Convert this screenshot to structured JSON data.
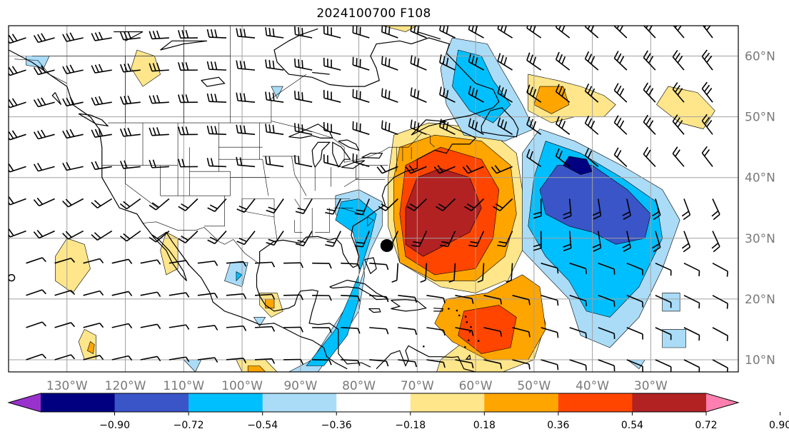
{
  "title": "2024100700 F108",
  "map": {
    "lon_range": [
      -140,
      -15
    ],
    "lat_range": [
      8,
      65
    ],
    "lon_labels": [
      "130°W",
      "120°W",
      "110°W",
      "100°W",
      "90°W",
      "80°W",
      "70°W",
      "60°W",
      "50°W",
      "40°W",
      "30°W"
    ],
    "lon_values": [
      -130,
      -120,
      -110,
      -100,
      -90,
      -80,
      -70,
      -60,
      -50,
      -40,
      -30
    ],
    "lat_labels": [
      "10°N",
      "20°N",
      "30°N",
      "40°N",
      "50°N",
      "60°N"
    ],
    "lat_values": [
      10,
      20,
      30,
      40,
      50,
      60
    ],
    "grid_color": "#a0a0a0",
    "marker": {
      "lon": -75.2,
      "lat": 28.8,
      "name": "storm-center"
    }
  },
  "colorbar": {
    "ticks": [
      "−0.90",
      "−0.72",
      "−0.54",
      "−0.36",
      "−0.18",
      "0.18",
      "0.36",
      "0.54",
      "0.72",
      "0.90"
    ],
    "colors": [
      "#9932cc",
      "#000080",
      "#3a55c8",
      "#00bfff",
      "#aadcf8",
      "#ffffff",
      "#ffe68a",
      "#ffa500",
      "#ff4500",
      "#b22222",
      "#ff80b0"
    ]
  },
  "fields": [
    {
      "name": "gulf-stream-negative",
      "level": "#aadcf8",
      "polys": [
        [
          [
            -84,
            37
          ],
          [
            -80,
            38
          ],
          [
            -76,
            36
          ],
          [
            -76,
            32
          ],
          [
            -78,
            28
          ],
          [
            -80,
            22
          ],
          [
            -84,
            16
          ],
          [
            -88,
            10
          ],
          [
            -92,
            8
          ],
          [
            -87,
            8
          ],
          [
            -84,
            12
          ],
          [
            -80,
            18
          ],
          [
            -79,
            24
          ],
          [
            -80,
            30
          ],
          [
            -84,
            34
          ]
        ]
      ]
    },
    {
      "name": "gulf-stream-core",
      "level": "#00bfff",
      "polys": [
        [
          [
            -83,
            36
          ],
          [
            -80,
            36.5
          ],
          [
            -77,
            34
          ],
          [
            -78,
            30
          ],
          [
            -80,
            24
          ],
          [
            -84,
            15
          ],
          [
            -89,
            9
          ],
          [
            -86,
            9
          ],
          [
            -82,
            14
          ],
          [
            -80,
            20
          ],
          [
            -80,
            27
          ],
          [
            -81,
            31
          ],
          [
            -84,
            33
          ]
        ]
      ]
    },
    {
      "name": "atlantic-positive-outer",
      "level": "#ffe68a",
      "polys": [
        [
          [
            -74,
            47
          ],
          [
            -68,
            49
          ],
          [
            -58,
            48
          ],
          [
            -53,
            44
          ],
          [
            -52,
            38
          ],
          [
            -51,
            30
          ],
          [
            -55,
            22
          ],
          [
            -58,
            18
          ],
          [
            -62,
            13
          ],
          [
            -66,
            10
          ],
          [
            -67,
            7
          ],
          [
            -58,
            7
          ],
          [
            -50,
            10
          ],
          [
            -48,
            16
          ],
          [
            -50,
            22
          ],
          [
            -55,
            23
          ],
          [
            -60,
            21
          ],
          [
            -66,
            22
          ],
          [
            -73,
            26
          ],
          [
            -75,
            32
          ],
          [
            -75,
            40
          ]
        ]
      ]
    },
    {
      "name": "atlantic-positive-mid",
      "level": "#ffa500",
      "polys": [
        [
          [
            -73,
            45
          ],
          [
            -67,
            47
          ],
          [
            -59,
            46
          ],
          [
            -54,
            42
          ],
          [
            -53,
            34
          ],
          [
            -55,
            27
          ],
          [
            -60,
            23
          ],
          [
            -67,
            23
          ],
          [
            -73,
            26
          ],
          [
            -74,
            33
          ],
          [
            -74,
            40
          ]
        ]
      ]
    },
    {
      "name": "atlantic-positive-strong",
      "level": "#ff4500",
      "polys": [
        [
          [
            -72,
            42
          ],
          [
            -66,
            45
          ],
          [
            -59,
            43
          ],
          [
            -56,
            38
          ],
          [
            -57,
            30
          ],
          [
            -60,
            25
          ],
          [
            -67,
            24
          ],
          [
            -72,
            27
          ],
          [
            -73,
            34
          ]
        ]
      ]
    },
    {
      "name": "atlantic-positive-core",
      "level": "#b22222",
      "polys": [
        [
          [
            -70,
            40
          ],
          [
            -66,
            41.5
          ],
          [
            -61,
            40
          ],
          [
            -59,
            35
          ],
          [
            -61,
            31
          ],
          [
            -65,
            29
          ],
          [
            -69,
            27
          ],
          [
            -72,
            29
          ],
          [
            -72,
            35
          ]
        ]
      ]
    },
    {
      "name": "tropical-positive",
      "level": "#ffa500",
      "polys": [
        [
          [
            -65,
            20
          ],
          [
            -58,
            21
          ],
          [
            -52,
            24
          ],
          [
            -49,
            22
          ],
          [
            -48,
            15
          ],
          [
            -51,
            10
          ],
          [
            -58,
            10
          ],
          [
            -64,
            13
          ],
          [
            -67,
            16
          ]
        ]
      ]
    },
    {
      "name": "tropical-positive-core",
      "level": "#ff4500",
      "polys": [
        [
          [
            -62,
            18
          ],
          [
            -56,
            19
          ],
          [
            -53,
            17
          ],
          [
            -54,
            12
          ],
          [
            -59,
            11
          ],
          [
            -63,
            14
          ]
        ]
      ]
    },
    {
      "name": "labrador-negative",
      "level": "#aadcf8",
      "polys": [
        [
          [
            -64,
            63
          ],
          [
            -58,
            62
          ],
          [
            -55,
            57
          ],
          [
            -52,
            52
          ],
          [
            -50,
            48
          ],
          [
            -55,
            46
          ],
          [
            -62,
            47
          ],
          [
            -65,
            52
          ],
          [
            -66,
            58
          ]
        ]
      ]
    },
    {
      "name": "labrador-core",
      "level": "#00bfff",
      "polys": [
        [
          [
            -63,
            61
          ],
          [
            -59,
            60
          ],
          [
            -57,
            56
          ],
          [
            -54,
            52
          ],
          [
            -57,
            49
          ],
          [
            -61,
            51
          ],
          [
            -64,
            55
          ]
        ]
      ]
    },
    {
      "name": "central-atlantic-negative",
      "level": "#aadcf8",
      "polys": [
        [
          [
            -49,
            48
          ],
          [
            -43,
            46
          ],
          [
            -35,
            42
          ],
          [
            -28,
            38
          ],
          [
            -25,
            33
          ],
          [
            -28,
            25
          ],
          [
            -32,
            17
          ],
          [
            -37,
            12
          ],
          [
            -42,
            14
          ],
          [
            -44,
            20
          ],
          [
            -48,
            24
          ],
          [
            -52,
            28
          ],
          [
            -52,
            36
          ],
          [
            -52,
            44
          ]
        ]
      ]
    },
    {
      "name": "central-atlantic-mid",
      "level": "#00bfff",
      "polys": [
        [
          [
            -48,
            46
          ],
          [
            -42,
            44
          ],
          [
            -35,
            40
          ],
          [
            -29,
            36
          ],
          [
            -28,
            30
          ],
          [
            -32,
            22
          ],
          [
            -37,
            17
          ],
          [
            -41,
            18
          ],
          [
            -44,
            23
          ],
          [
            -48,
            27
          ],
          [
            -51,
            32
          ],
          [
            -50,
            40
          ]
        ]
      ]
    },
    {
      "name": "central-atlantic-strong",
      "level": "#3a55c8",
      "polys": [
        [
          [
            -46,
            42
          ],
          [
            -40,
            42
          ],
          [
            -34,
            38
          ],
          [
            -30,
            34
          ],
          [
            -31,
            30
          ],
          [
            -36,
            29
          ],
          [
            -40,
            31
          ],
          [
            -44,
            32
          ],
          [
            -48,
            34
          ],
          [
            -49,
            38
          ]
        ]
      ]
    },
    {
      "name": "central-atlantic-core",
      "level": "#000080",
      "polys": [
        [
          [
            -44,
            43.5
          ],
          [
            -41,
            43
          ],
          [
            -40,
            41
          ],
          [
            -42,
            40.5
          ],
          [
            -45,
            42
          ]
        ]
      ]
    },
    {
      "name": "northeast-positive",
      "level": "#ffe68a",
      "polys": [
        [
          [
            -51,
            57
          ],
          [
            -46,
            56
          ],
          [
            -42,
            55
          ],
          [
            -38,
            53.5
          ],
          [
            -36,
            52
          ],
          [
            -38,
            50
          ],
          [
            -43,
            50
          ],
          [
            -47,
            49
          ],
          [
            -51,
            51
          ]
        ],
        [
          [
            -27,
            55
          ],
          [
            -22,
            54
          ],
          [
            -19,
            51
          ],
          [
            -21,
            48
          ],
          [
            -25,
            49
          ],
          [
            -29,
            52
          ]
        ]
      ]
    },
    {
      "name": "northeast-positive-core",
      "level": "#ffa500",
      "polys": [
        [
          [
            -49,
            55
          ],
          [
            -45,
            55
          ],
          [
            -44,
            52
          ],
          [
            -47,
            50.5
          ],
          [
            -50,
            52
          ]
        ]
      ]
    },
    {
      "name": "arctic-positive",
      "level": "#ffe68a",
      "polys": [
        [
          [
            -118,
            61
          ],
          [
            -115,
            60
          ],
          [
            -114,
            57
          ],
          [
            -117,
            55
          ],
          [
            -119,
            58
          ]
        ],
        [
          [
            -76,
            65
          ],
          [
            -72,
            64
          ],
          [
            -70,
            65
          ]
        ]
      ]
    },
    {
      "name": "pacific-positive",
      "level": "#ffe68a",
      "polys": [
        [
          [
            -130,
            30
          ],
          [
            -127,
            29
          ],
          [
            -126,
            25
          ],
          [
            -129,
            21
          ],
          [
            -132,
            23
          ],
          [
            -132,
            27
          ]
        ],
        [
          [
            -113,
            31
          ],
          [
            -111,
            30
          ],
          [
            -111,
            25
          ],
          [
            -113,
            24
          ],
          [
            -114,
            28
          ]
        ],
        [
          [
            -127,
            15
          ],
          [
            -125,
            14
          ],
          [
            -125,
            10
          ],
          [
            -127,
            10
          ],
          [
            -128,
            13
          ]
        ]
      ]
    },
    {
      "name": "pacific-positive-core",
      "level": "#ffa500",
      "polys": [
        [
          [
            -126,
            13
          ],
          [
            -125.3,
            12.5
          ],
          [
            -125.5,
            11
          ],
          [
            -126.5,
            11.5
          ]
        ]
      ]
    },
    {
      "name": "gulf-positive",
      "level": "#ffe68a",
      "polys": [
        [
          [
            -97,
            21
          ],
          [
            -94,
            21
          ],
          [
            -93,
            18
          ],
          [
            -95,
            17
          ],
          [
            -97,
            19
          ]
        ],
        [
          [
            -101,
            10
          ],
          [
            -96,
            10
          ],
          [
            -94,
            8
          ],
          [
            -100,
            8
          ]
        ]
      ]
    },
    {
      "name": "gulf-positive-core",
      "level": "#ffa500",
      "polys": [
        [
          [
            -96,
            20
          ],
          [
            -94.5,
            20
          ],
          [
            -94.5,
            18.5
          ],
          [
            -96,
            18.5
          ]
        ],
        [
          [
            -99,
            9
          ],
          [
            -97,
            9
          ],
          [
            -96,
            8
          ],
          [
            -99,
            8
          ]
        ]
      ]
    },
    {
      "name": "small-negatives",
      "level": "#aadcf8",
      "polys": [
        [
          [
            -137,
            60
          ],
          [
            -133,
            60
          ],
          [
            -134,
            58
          ],
          [
            -137,
            58.5
          ]
        ],
        [
          [
            -102,
            26
          ],
          [
            -99,
            26
          ],
          [
            -100,
            22
          ],
          [
            -103,
            23
          ]
        ],
        [
          [
            -95,
            55
          ],
          [
            -93,
            55
          ],
          [
            -94,
            53
          ]
        ],
        [
          [
            -98,
            17
          ],
          [
            -96,
            17
          ],
          [
            -97,
            15.5
          ]
        ],
        [
          [
            -28,
            15
          ],
          [
            -24,
            15
          ],
          [
            -24,
            12
          ],
          [
            -28,
            12
          ]
        ],
        [
          [
            -34,
            10
          ],
          [
            -31,
            10
          ],
          [
            -32,
            8.5
          ]
        ],
        [
          [
            -110,
            10
          ],
          [
            -107,
            10
          ],
          [
            -108,
            8
          ]
        ],
        [
          [
            -28,
            21
          ],
          [
            -25,
            21
          ],
          [
            -25,
            18
          ],
          [
            -28,
            18
          ]
        ]
      ]
    },
    {
      "name": "small-negative-cores",
      "level": "#00bfff",
      "polys": [
        [
          [
            -101,
            24.5
          ],
          [
            -100,
            24
          ],
          [
            -101,
            23
          ]
        ],
        [
          [
            -78.5,
            33.5
          ],
          [
            -77.5,
            33
          ],
          [
            -78.5,
            32
          ]
        ]
      ]
    }
  ]
}
